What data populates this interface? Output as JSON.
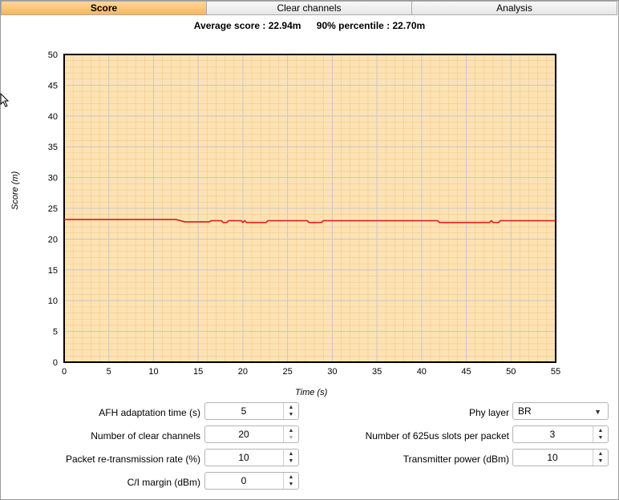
{
  "tabs": [
    {
      "label": "Score",
      "active": true
    },
    {
      "label": "Clear channels",
      "active": false
    },
    {
      "label": "Analysis",
      "active": false
    }
  ],
  "stats": {
    "average": "Average score : 22.94m",
    "percentile": "90% percentile : 22.70m"
  },
  "chart_data": {
    "type": "line",
    "xlabel": "Time (s)",
    "ylabel": "Score (m)",
    "xlim": [
      0,
      55
    ],
    "ylim": [
      0,
      50
    ],
    "xticks": [
      0,
      5,
      10,
      15,
      20,
      25,
      30,
      35,
      40,
      45,
      50,
      55
    ],
    "yticks": [
      0,
      5,
      10,
      15,
      20,
      25,
      30,
      35,
      40,
      45,
      50
    ],
    "grid": true,
    "background_color": "#fde3b4",
    "line_color": "#d92020",
    "series": [
      {
        "x": [
          0,
          12.5,
          13.5,
          16.2,
          16.5,
          17.6,
          17.8,
          18.2,
          18.4,
          19.8,
          20.0,
          20.2,
          20.4,
          22.6,
          22.8,
          27.2,
          27.4,
          28.8,
          29.0,
          41.8,
          42.0,
          47.6,
          47.8,
          48.0,
          48.6,
          48.8,
          55
        ],
        "y": [
          23.2,
          23.2,
          22.8,
          22.8,
          23.0,
          23.0,
          22.7,
          22.7,
          23.0,
          23.0,
          22.7,
          23.0,
          22.7,
          22.7,
          23.0,
          23.0,
          22.7,
          22.7,
          23.0,
          23.0,
          22.7,
          22.7,
          23.0,
          22.7,
          22.7,
          23.0,
          23.0
        ]
      }
    ]
  },
  "params_left": [
    {
      "label": "AFH adaptation time (s)",
      "value": "5"
    },
    {
      "label": "Number of clear channels",
      "value": "20"
    },
    {
      "label": "Packet re-transmission rate (%)",
      "value": "10"
    },
    {
      "label": "C/I margin (dBm)",
      "value": "0"
    }
  ],
  "params_right": {
    "phy": {
      "label": "Phy layer",
      "value": "BR"
    },
    "slots": {
      "label": "Number of 625us slots per packet",
      "value": "3"
    },
    "power": {
      "label": "Transmitter power (dBm)",
      "value": "10"
    }
  },
  "icons": {
    "spin_up": "▲",
    "spin_down": "▼",
    "dropdown": "▼"
  }
}
